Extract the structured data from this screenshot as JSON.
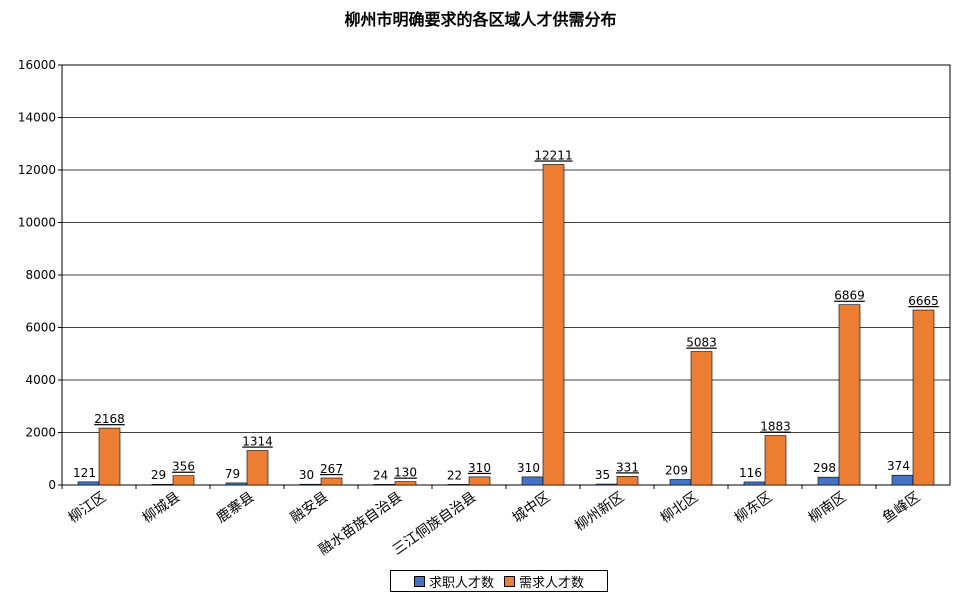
{
  "chart_data": {
    "type": "bar",
    "title": "柳州市明确要求的各区域人才供需分布",
    "categories": [
      "柳江区",
      "柳城县",
      "鹿寨县",
      "融安县",
      "融水苗族自治县",
      "三江侗族自治县",
      "城中区",
      "柳州新区",
      "柳北区",
      "柳东区",
      "柳南区",
      "鱼峰区"
    ],
    "series": [
      {
        "name": "求职人才数",
        "color": "#4472C4",
        "values": [
          121,
          29,
          79,
          30,
          24,
          22,
          310,
          35,
          209,
          116,
          298,
          374
        ]
      },
      {
        "name": "需求人才数",
        "color": "#ED7D31",
        "values": [
          2168,
          356,
          1314,
          267,
          130,
          310,
          12211,
          331,
          5083,
          1883,
          6869,
          6665
        ]
      }
    ],
    "ylim": [
      0,
      16000
    ],
    "yticks": [
      0,
      2000,
      4000,
      6000,
      8000,
      10000,
      12000,
      14000,
      16000
    ],
    "grid": true,
    "legend_position": "bottom"
  }
}
